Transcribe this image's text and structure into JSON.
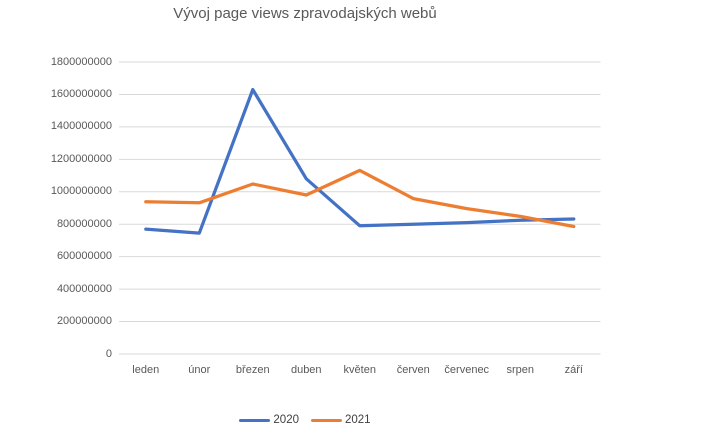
{
  "chart": {
    "background_color": "#ffffff",
    "text_color": "#595959",
    "gridline_color": "#d9d9d9",
    "axis_line_color": "#d9d9d9"
  },
  "chart_data": {
    "type": "line",
    "title": "Vývoj page views zpravodajských webů",
    "categories": [
      "leden",
      "únor",
      "březen",
      "duben",
      "květen",
      "červen",
      "červenec",
      "srpen",
      "září"
    ],
    "series": [
      {
        "name": "2020",
        "color": "#4472c4",
        "values": [
          770000000,
          745000000,
          1630000000,
          1080000000,
          790000000,
          800000000,
          810000000,
          825000000,
          832000000
        ]
      },
      {
        "name": "2021",
        "color": "#ed7d31",
        "values": [
          938000000,
          932000000,
          1048000000,
          980000000,
          1132000000,
          958000000,
          896000000,
          848000000,
          786000000
        ]
      }
    ],
    "xlabel": "",
    "ylabel": "",
    "ylim": [
      0,
      1800000000
    ],
    "ytick_step": 200000000,
    "ytick_labels": [
      "0",
      "200000000",
      "400000000",
      "600000000",
      "800000000",
      "1000000000",
      "1200000000",
      "1400000000",
      "1600000000",
      "1800000000"
    ],
    "grid": true,
    "legend_position": "bottom"
  }
}
